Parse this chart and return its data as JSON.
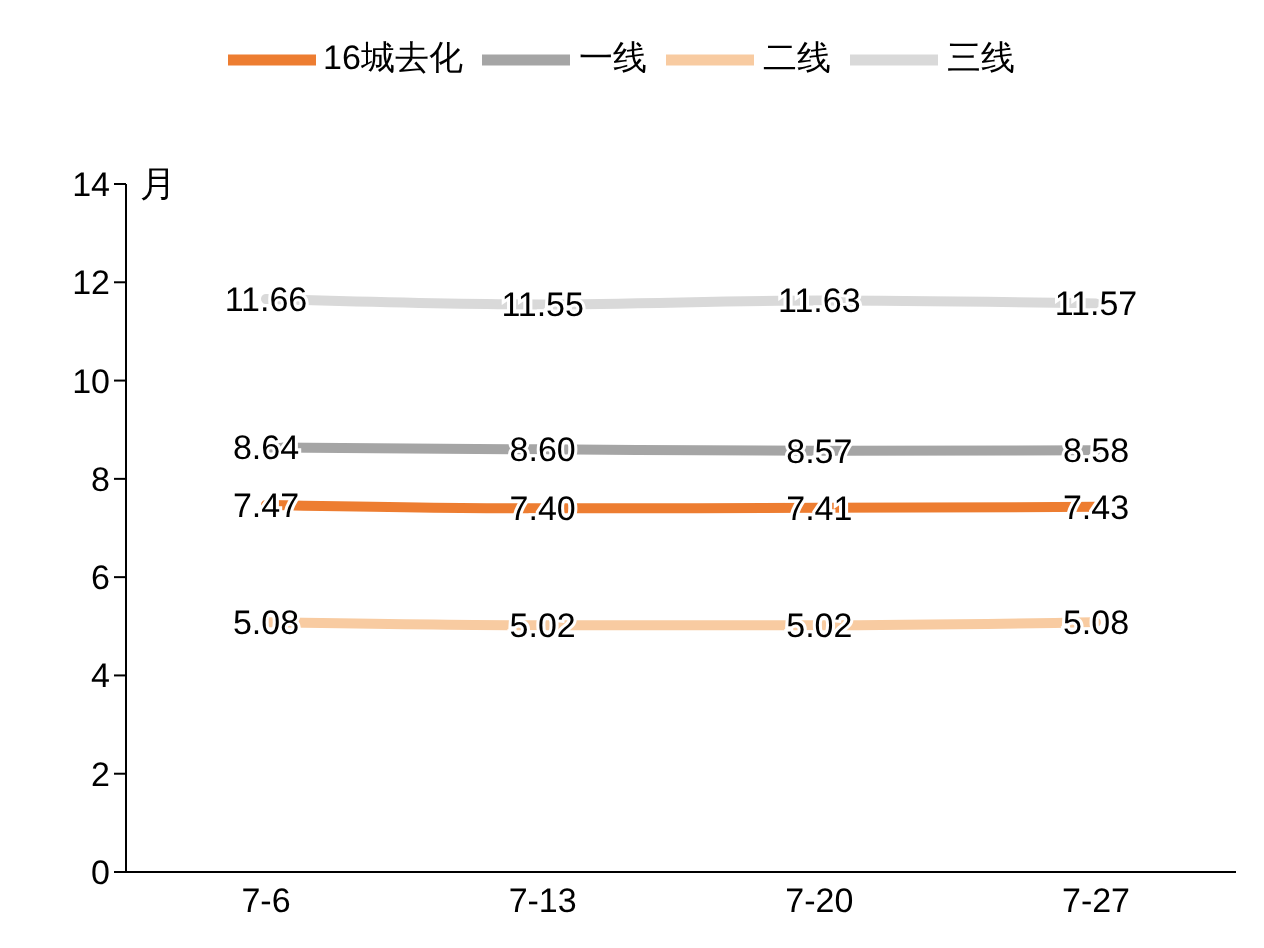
{
  "chart_data": {
    "type": "line",
    "ylabel": "月",
    "categories": [
      "7-6",
      "7-13",
      "7-20",
      "7-27"
    ],
    "series": [
      {
        "name": "16城去化",
        "color": "#ed7d31",
        "values": [
          7.47,
          7.4,
          7.41,
          7.43
        ],
        "value_labels": [
          "7.47",
          "7.40",
          "7.41",
          "7.43"
        ]
      },
      {
        "name": "一线",
        "color": "#a5a5a5",
        "values": [
          8.64,
          8.6,
          8.57,
          8.58
        ],
        "value_labels": [
          "8.64",
          "8.60",
          "8.57",
          "8.58"
        ]
      },
      {
        "name": "二线",
        "color": "#f8cba1",
        "values": [
          5.08,
          5.02,
          5.02,
          5.08
        ],
        "value_labels": [
          "5.08",
          "5.02",
          "5.02",
          "5.08"
        ]
      },
      {
        "name": "三线",
        "color": "#d9d9d9",
        "values": [
          11.66,
          11.55,
          11.63,
          11.57
        ],
        "value_labels": [
          "11.66",
          "11.55",
          "11.63",
          "11.57"
        ]
      }
    ],
    "ylim": [
      0,
      14
    ],
    "yticks": [
      0,
      2,
      4,
      6,
      8,
      10,
      12,
      14
    ],
    "grid": false,
    "legend": "top",
    "marker": "none",
    "line_style": "solid"
  }
}
